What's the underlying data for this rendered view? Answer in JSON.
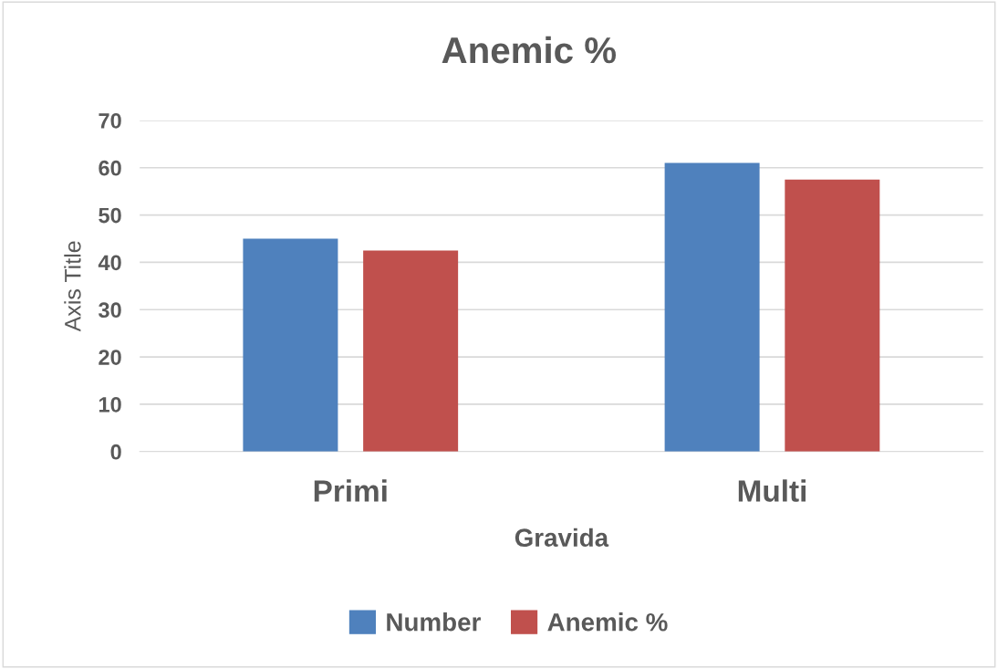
{
  "chart_data": {
    "type": "bar",
    "title": "Anemic %",
    "xlabel": "Gravida",
    "ylabel": "Axis Title",
    "categories": [
      "Primi",
      "Multi"
    ],
    "series": [
      {
        "name": "Number",
        "color": "#4f81bd",
        "values": [
          45,
          61
        ]
      },
      {
        "name": "Anemic %",
        "color": "#c0504d",
        "values": [
          42.5,
          57.5
        ]
      }
    ],
    "ylim": [
      0,
      70
    ],
    "yticks": [
      0,
      10,
      20,
      30,
      40,
      50,
      60,
      70
    ],
    "grid": "y",
    "legend": "bottom"
  }
}
